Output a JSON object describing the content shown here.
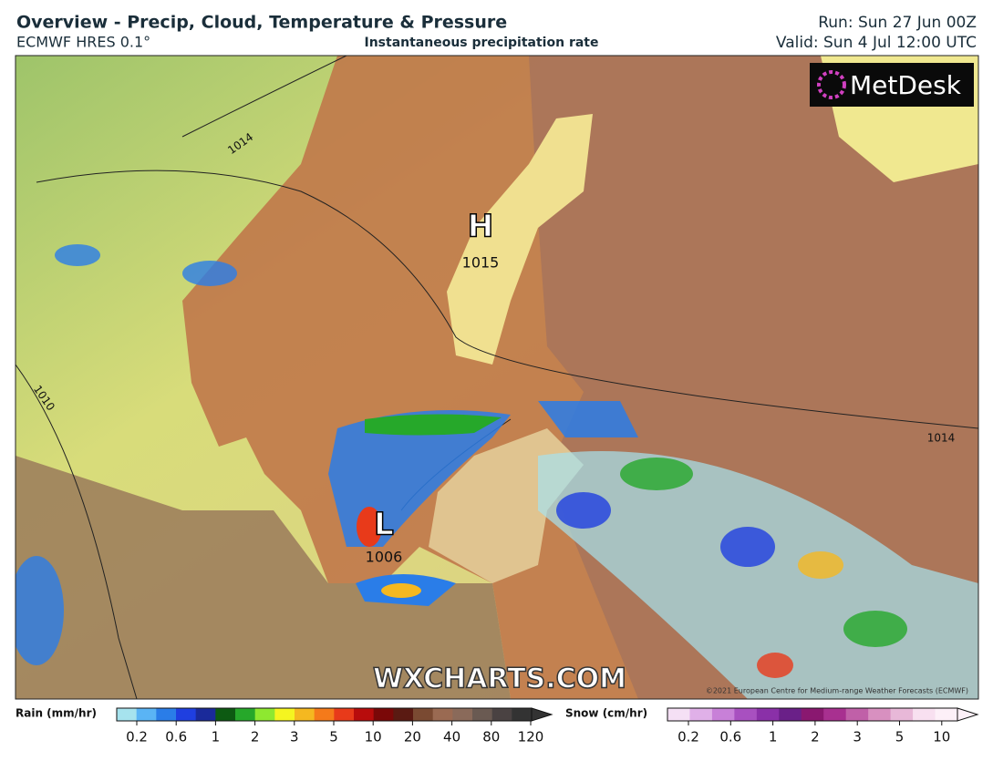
{
  "header": {
    "title": "Overview - Precip, Cloud, Temperature & Pressure",
    "model": "ECMWF HRES 0.1°",
    "subtitle": "Instantaneous precipitation rate",
    "run": "Run: Sun 27 Jun 00Z",
    "valid": "Valid: Sun 4 Jul 12:00 UTC"
  },
  "map": {
    "logo": "MetDesk",
    "watermark": "WXCHARTS.COM",
    "copyright": "©2021 European Centre for Medium-range Weather Forecasts (ECMWF)",
    "pressure_centers": [
      {
        "symbol": "H",
        "value": "1015"
      },
      {
        "symbol": "L",
        "value": "1006"
      }
    ],
    "isobar_labels": [
      "1014",
      "1010",
      "1014"
    ]
  },
  "legend": {
    "rain": {
      "label": "Rain (mm/hr)",
      "ticks": [
        0.2,
        0.6,
        1,
        2,
        3,
        5,
        10,
        20,
        40,
        80,
        120
      ],
      "colors": [
        "#a6e3ee",
        "#5ab4f5",
        "#2a7de8",
        "#1f3fe0",
        "#1a2a9a",
        "#0d5a12",
        "#26a82a",
        "#8ee830",
        "#f5f520",
        "#f5b820",
        "#f57a1a",
        "#e83a1a",
        "#b80c0c",
        "#7a0808",
        "#5a1a12",
        "#7a4a32",
        "#9a6a52",
        "#8a6a5a",
        "#6a5a52",
        "#4a4242",
        "#333"
      ]
    },
    "snow": {
      "label": "Snow (cm/hr)",
      "ticks": [
        0.2,
        0.6,
        1,
        2,
        3,
        5,
        10
      ],
      "colors": [
        "#f5e0f5",
        "#e0b0e8",
        "#c880d8",
        "#a850c0",
        "#8a30a8",
        "#6a2088",
        "#8a1870",
        "#a83090",
        "#c060a8",
        "#d890c0",
        "#e8b8d8",
        "#f8e0f0",
        "#fdf0f8"
      ]
    }
  }
}
